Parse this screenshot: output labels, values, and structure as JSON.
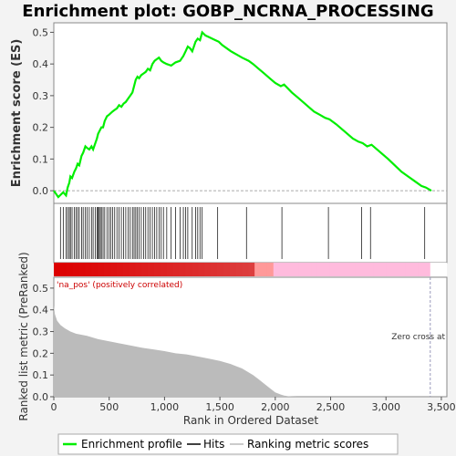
{
  "chart_data": {
    "type": "line",
    "title": "Enrichment plot: GOBP_NCRNA_PROCESSING",
    "top_panel": {
      "ylabel": "Enrichment score (ES)",
      "ylim": [
        -0.04,
        0.53
      ],
      "yticks": [
        0.0,
        0.1,
        0.2,
        0.3,
        0.4,
        0.5
      ],
      "ytick_labels": [
        "0.0",
        "0.1",
        "0.2",
        "0.3",
        "0.4",
        "0.5"
      ],
      "series": [
        {
          "name": "Enrichment profile",
          "color": "#00ee00",
          "x": [
            0,
            40,
            85,
            110,
            125,
            140,
            150,
            165,
            185,
            200,
            215,
            230,
            250,
            265,
            285,
            300,
            320,
            340,
            355,
            375,
            390,
            400,
            415,
            430,
            445,
            460,
            480,
            500,
            515,
            530,
            550,
            570,
            590,
            610,
            630,
            650,
            670,
            690,
            710,
            725,
            740,
            755,
            770,
            790,
            810,
            830,
            850,
            870,
            890,
            910,
            930,
            950,
            970,
            990,
            1020,
            1060,
            1100,
            1140,
            1170,
            1190,
            1210,
            1230,
            1250,
            1280,
            1300,
            1320,
            1340,
            1370,
            1400,
            1430,
            1460,
            1490,
            1520,
            1560,
            1600,
            1650,
            1700,
            1760,
            1800,
            1850,
            1900,
            1950,
            2000,
            2050,
            2080,
            2150,
            2200,
            2250,
            2300,
            2350,
            2400,
            2450,
            2490,
            2550,
            2600,
            2650,
            2700,
            2750,
            2790,
            2830,
            2870,
            2920,
            2970,
            3020,
            3080,
            3140,
            3200,
            3260,
            3320,
            3360,
            3410
          ],
          "y": [
            0.0,
            -0.02,
            -0.005,
            -0.015,
            0.01,
            0.025,
            0.045,
            0.04,
            0.06,
            0.07,
            0.085,
            0.08,
            0.11,
            0.12,
            0.14,
            0.135,
            0.13,
            0.14,
            0.13,
            0.15,
            0.165,
            0.18,
            0.19,
            0.2,
            0.2,
            0.22,
            0.235,
            0.24,
            0.245,
            0.25,
            0.255,
            0.26,
            0.27,
            0.265,
            0.275,
            0.28,
            0.29,
            0.3,
            0.31,
            0.33,
            0.35,
            0.36,
            0.355,
            0.365,
            0.37,
            0.375,
            0.385,
            0.38,
            0.4,
            0.41,
            0.415,
            0.42,
            0.41,
            0.405,
            0.4,
            0.395,
            0.405,
            0.41,
            0.425,
            0.44,
            0.455,
            0.45,
            0.44,
            0.47,
            0.48,
            0.475,
            0.5,
            0.49,
            0.485,
            0.48,
            0.475,
            0.47,
            0.46,
            0.45,
            0.44,
            0.43,
            0.42,
            0.41,
            0.4,
            0.385,
            0.37,
            0.355,
            0.34,
            0.33,
            0.335,
            0.31,
            0.295,
            0.28,
            0.265,
            0.25,
            0.24,
            0.23,
            0.225,
            0.21,
            0.195,
            0.18,
            0.165,
            0.155,
            0.15,
            0.14,
            0.145,
            0.13,
            0.115,
            0.1,
            0.08,
            0.06,
            0.045,
            0.03,
            0.015,
            0.01,
            0.0
          ]
        }
      ]
    },
    "hits": [
      60,
      85,
      110,
      125,
      140,
      150,
      165,
      185,
      200,
      215,
      230,
      250,
      265,
      285,
      300,
      320,
      340,
      355,
      375,
      390,
      400,
      410,
      420,
      430,
      445,
      460,
      480,
      500,
      515,
      530,
      550,
      570,
      590,
      610,
      630,
      650,
      670,
      690,
      710,
      725,
      740,
      755,
      770,
      790,
      810,
      830,
      850,
      870,
      890,
      910,
      930,
      950,
      970,
      990,
      1020,
      1060,
      1100,
      1140,
      1170,
      1190,
      1210,
      1250,
      1280,
      1300,
      1320,
      1340,
      1480,
      1740,
      2060,
      2480,
      2780,
      2860,
      3350
    ],
    "bottom_panel": {
      "ylabel": "Ranked list metric (PreRanked)",
      "xlabel": "Rank in Ordered Dataset",
      "ylim": [
        0.0,
        0.55
      ],
      "yticks": [
        0.0,
        0.1,
        0.2,
        0.3,
        0.4,
        0.5
      ],
      "ytick_labels": [
        "0.0",
        "0.1",
        "0.2",
        "0.3",
        "0.4",
        "0.5"
      ],
      "xlim": [
        0,
        3550
      ],
      "xticks": [
        0,
        500,
        1000,
        1500,
        2000,
        2500,
        3000,
        3500
      ],
      "xtick_labels": [
        "0",
        "500",
        "1,000",
        "1,500",
        "2,000",
        "2,500",
        "3,000",
        "3,500"
      ],
      "metric_x": [
        0,
        10,
        30,
        60,
        100,
        150,
        200,
        300,
        400,
        500,
        600,
        700,
        800,
        900,
        1000,
        1100,
        1200,
        1300,
        1400,
        1500,
        1600,
        1700,
        1800,
        1850,
        1900,
        1950,
        2000,
        2050,
        2080,
        2120,
        2150,
        2200,
        2300,
        2500,
        3000,
        3400
      ],
      "metric_y": [
        0.42,
        0.38,
        0.35,
        0.33,
        0.315,
        0.3,
        0.29,
        0.28,
        0.265,
        0.255,
        0.245,
        0.235,
        0.225,
        0.218,
        0.21,
        0.2,
        0.195,
        0.185,
        0.175,
        0.165,
        0.15,
        0.13,
        0.1,
        0.08,
        0.06,
        0.04,
        0.02,
        0.01,
        0.005,
        0.002,
        0.001,
        0.0,
        0.0,
        0.0,
        0.0,
        0.0
      ],
      "annotation_pos": "'na_pos' (positively correlated)",
      "annotation_zero": "Zero cross at",
      "zero_cross_x": 3400
    },
    "legend": {
      "placement": "bottom",
      "items": [
        {
          "label": "Enrichment profile",
          "color": "#00ee00"
        },
        {
          "label": "Hits",
          "color": "#000000"
        },
        {
          "label": "Ranking metric scores",
          "color": "#bbbbbb"
        }
      ]
    },
    "colors": {
      "profile": "#00ee00",
      "fill_metric": "#bbbbbb",
      "pos_band": "#dd0000",
      "neg_band": "#ffaadd",
      "annotation_pos_color": "#cc0000"
    }
  }
}
